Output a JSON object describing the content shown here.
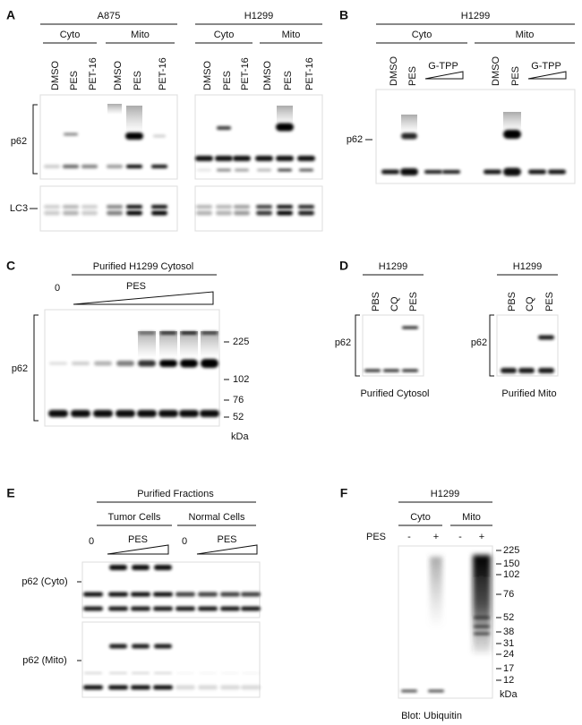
{
  "panels": {
    "a": {
      "letter": "A",
      "groups": [
        {
          "name": "A875",
          "subgroups": [
            {
              "name": "Cyto",
              "lanes": [
                "DMSO",
                "PES",
                "PET-16"
              ]
            },
            {
              "name": "Mito",
              "lanes": [
                "DMSO",
                "PES",
                "PET-16"
              ]
            }
          ]
        },
        {
          "name": "H1299",
          "subgroups": [
            {
              "name": "Cyto",
              "lanes": [
                "DMSO",
                "PES",
                "PET-16"
              ]
            },
            {
              "name": "Mito",
              "lanes": [
                "DMSO",
                "PES",
                "PET-16"
              ]
            }
          ]
        }
      ],
      "rows": [
        "p62",
        "LC3"
      ]
    },
    "b": {
      "letter": "B",
      "title": "H1299",
      "subgroups": [
        {
          "name": "Cyto",
          "lanes": [
            "DMSO",
            "PES",
            "G-TPP"
          ]
        },
        {
          "name": "Mito",
          "lanes": [
            "DMSO",
            "PES",
            "G-TPP"
          ]
        }
      ],
      "row": "p62"
    },
    "c": {
      "letter": "C",
      "title": "Purified H1299 Cytosol",
      "zero": "0",
      "treatment": "PES",
      "row": "p62",
      "markers": [
        "225",
        "102",
        "76",
        "52"
      ],
      "unit": "kDa"
    },
    "d": {
      "letter": "D",
      "blots": [
        {
          "title": "H1299",
          "lanes": [
            "PBS",
            "CQ",
            "PES"
          ],
          "row": "p62",
          "caption": "Purified Cytosol"
        },
        {
          "title": "H1299",
          "lanes": [
            "PBS",
            "CQ",
            "PES"
          ],
          "row": "p62",
          "caption": "Purified Mito"
        }
      ]
    },
    "e": {
      "letter": "E",
      "title": "Purified Fractions",
      "groups": [
        {
          "name": "Tumor Cells",
          "zero": "0",
          "treatment": "PES"
        },
        {
          "name": "Normal Cells",
          "zero": "0",
          "treatment": "PES"
        }
      ],
      "rows": [
        "p62 (Cyto)",
        "p62 (Mito)"
      ]
    },
    "f": {
      "letter": "F",
      "title": "H1299",
      "subgroups": [
        "Cyto",
        "Mito"
      ],
      "treatment": "PES",
      "signs": [
        "-",
        "+",
        "-",
        "+"
      ],
      "markers": [
        "225",
        "150",
        "102",
        "76",
        "52",
        "38",
        "31",
        "24",
        "17",
        "12"
      ],
      "unit": "kDa",
      "caption": "Blot:  Ubiquitin"
    }
  }
}
